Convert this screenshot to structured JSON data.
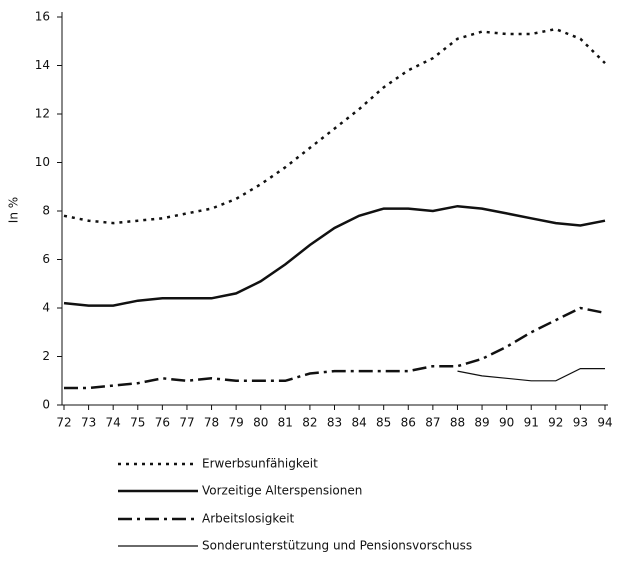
{
  "chart_data": {
    "type": "line",
    "y_label": "In %",
    "categories": [
      "72",
      "73",
      "74",
      "75",
      "76",
      "77",
      "78",
      "79",
      "80",
      "81",
      "82",
      "83",
      "84",
      "85",
      "86",
      "87",
      "88",
      "89",
      "90",
      "91",
      "92",
      "93",
      "94"
    ],
    "ylim": [
      0,
      16
    ],
    "yticks": [
      0,
      2,
      4,
      6,
      8,
      10,
      12,
      14,
      16
    ],
    "series": [
      {
        "name": "Erwerbsunfähigkeit",
        "color": "#111111",
        "dash": "dotted",
        "width": 2.5,
        "values": [
          7.8,
          7.6,
          7.5,
          7.6,
          7.7,
          7.9,
          8.1,
          8.5,
          9.1,
          9.8,
          10.6,
          11.4,
          12.2,
          13.1,
          13.8,
          14.3,
          15.1,
          15.4,
          15.3,
          15.3,
          15.5,
          15.1,
          14.1
        ]
      },
      {
        "name": "Vorzeitige Alterspensionen",
        "color": "#111111",
        "dash": "solid",
        "width": 2.5,
        "values": [
          4.2,
          4.1,
          4.1,
          4.3,
          4.4,
          4.4,
          4.4,
          4.6,
          5.1,
          5.8,
          6.6,
          7.3,
          7.8,
          8.1,
          8.1,
          8.0,
          8.2,
          8.1,
          7.9,
          7.7,
          7.5,
          7.4,
          7.6
        ]
      },
      {
        "name": "Arbeitslosigkeit",
        "color": "#111111",
        "dash": "dashdot",
        "width": 2.5,
        "values": [
          0.7,
          0.7,
          0.8,
          0.9,
          1.1,
          1.0,
          1.1,
          1.0,
          1.0,
          1.0,
          1.3,
          1.4,
          1.4,
          1.4,
          1.4,
          1.6,
          1.6,
          1.9,
          2.4,
          3.0,
          3.5,
          4.0,
          3.8
        ]
      },
      {
        "name": "Sonderunterstützung und Pensionsvorschuss",
        "color": "#111111",
        "dash": "solid",
        "width": 1.2,
        "values": [
          null,
          null,
          null,
          null,
          null,
          null,
          null,
          null,
          null,
          null,
          null,
          null,
          null,
          null,
          null,
          null,
          1.4,
          1.2,
          1.1,
          1.0,
          1.0,
          1.5,
          1.5
        ]
      }
    ]
  }
}
